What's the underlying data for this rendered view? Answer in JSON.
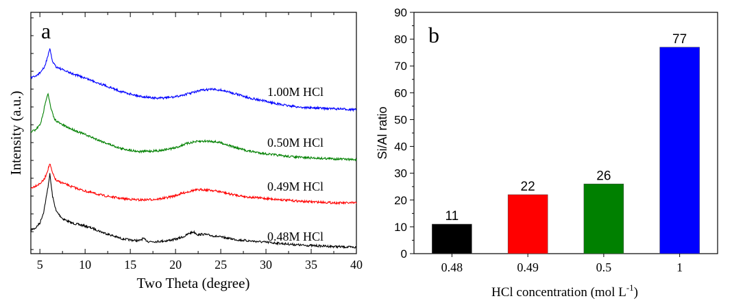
{
  "chart_data": [
    {
      "panel_label": "a",
      "type": "line",
      "xlabel": "Two Theta (degree)",
      "ylabel": "Intensity (a.u.)",
      "xlim": [
        4,
        40
      ],
      "xticks": [
        5,
        10,
        15,
        20,
        25,
        30,
        35,
        40
      ],
      "x_minor_step": 2.5,
      "y_units": "arbitrary (offset stacked)",
      "grid": false,
      "series": [
        {
          "name": "0.48M HCl",
          "color": "#000000",
          "x": [
            4,
            4.5,
            5,
            5.4,
            5.8,
            6.1,
            6.4,
            6.8,
            7.5,
            8.5,
            10,
            11,
            12,
            13,
            14,
            15,
            16,
            16.4,
            17,
            18,
            19,
            20,
            21,
            21.5,
            22,
            22.5,
            23,
            24,
            25,
            26,
            27,
            28,
            30,
            32,
            34,
            36,
            38,
            40
          ],
          "y": [
            0.25,
            0.27,
            0.34,
            0.48,
            0.75,
            1.0,
            0.7,
            0.5,
            0.4,
            0.34,
            0.3,
            0.26,
            0.21,
            0.17,
            0.13,
            0.11,
            0.1,
            0.13,
            0.09,
            0.09,
            0.1,
            0.12,
            0.16,
            0.2,
            0.22,
            0.18,
            0.19,
            0.17,
            0.15,
            0.13,
            0.11,
            0.1,
            0.08,
            0.06,
            0.04,
            0.03,
            0.02,
            0.01
          ]
        },
        {
          "name": "0.49M HCl",
          "color": "#ff0000",
          "x": [
            4,
            4.5,
            5,
            5.5,
            5.8,
            6.1,
            6.4,
            6.8,
            7.5,
            8.5,
            10,
            12,
            14,
            16,
            18,
            19,
            20,
            21,
            22,
            23,
            24,
            25,
            26,
            27,
            28,
            30,
            32,
            34,
            36,
            38,
            40
          ],
          "y": [
            0.2,
            0.23,
            0.26,
            0.32,
            0.42,
            0.53,
            0.4,
            0.3,
            0.27,
            0.22,
            0.16,
            0.1,
            0.06,
            0.04,
            0.05,
            0.07,
            0.1,
            0.14,
            0.17,
            0.18,
            0.17,
            0.15,
            0.12,
            0.1,
            0.08,
            0.06,
            0.04,
            0.02,
            0.01,
            0.0,
            0.0
          ]
        },
        {
          "name": "0.50M HCl",
          "color": "#008000",
          "x": [
            4,
            4.5,
            5,
            5.3,
            5.6,
            5.9,
            6.2,
            6.6,
            7.2,
            8,
            10,
            12,
            14,
            16,
            18,
            20,
            21,
            22,
            23,
            24,
            25,
            26,
            27,
            28,
            30,
            32,
            34,
            36,
            38,
            40
          ],
          "y": [
            0.38,
            0.4,
            0.47,
            0.58,
            0.78,
            0.9,
            0.7,
            0.55,
            0.49,
            0.44,
            0.34,
            0.24,
            0.15,
            0.11,
            0.12,
            0.16,
            0.21,
            0.24,
            0.25,
            0.25,
            0.23,
            0.19,
            0.15,
            0.12,
            0.08,
            0.05,
            0.03,
            0.02,
            0.01,
            0.0
          ]
        },
        {
          "name": "1.00M HCl",
          "color": "#0000ff",
          "x": [
            4,
            4.5,
            5,
            5.5,
            5.8,
            6.1,
            6.4,
            6.8,
            7.5,
            8.5,
            10,
            12,
            14,
            16,
            18,
            20,
            21,
            22,
            23,
            24,
            25,
            26,
            27,
            28,
            30,
            32,
            34,
            36,
            38,
            40
          ],
          "y": [
            0.42,
            0.44,
            0.49,
            0.56,
            0.68,
            0.8,
            0.64,
            0.57,
            0.53,
            0.48,
            0.42,
            0.33,
            0.24,
            0.18,
            0.15,
            0.17,
            0.2,
            0.23,
            0.26,
            0.27,
            0.26,
            0.23,
            0.2,
            0.16,
            0.11,
            0.06,
            0.03,
            0.02,
            0.01,
            0.0
          ]
        }
      ]
    },
    {
      "panel_label": "b",
      "type": "bar",
      "xlabel": "HCl concentration (mol L",
      "xlabel_sup": "-1",
      "xlabel_end": ")",
      "ylabel": "Si/Al ratio",
      "ylim": [
        0,
        90
      ],
      "yticks": [
        0,
        10,
        20,
        30,
        40,
        50,
        60,
        70,
        80,
        90
      ],
      "grid": false,
      "categories": [
        "0.48",
        "0.49",
        "0.5",
        "1"
      ],
      "values": [
        11,
        22,
        26,
        77
      ],
      "value_labels": [
        "11",
        "22",
        "26",
        "77"
      ],
      "colors": [
        "#000000",
        "#ff0000",
        "#008000",
        "#0000ff"
      ]
    }
  ]
}
